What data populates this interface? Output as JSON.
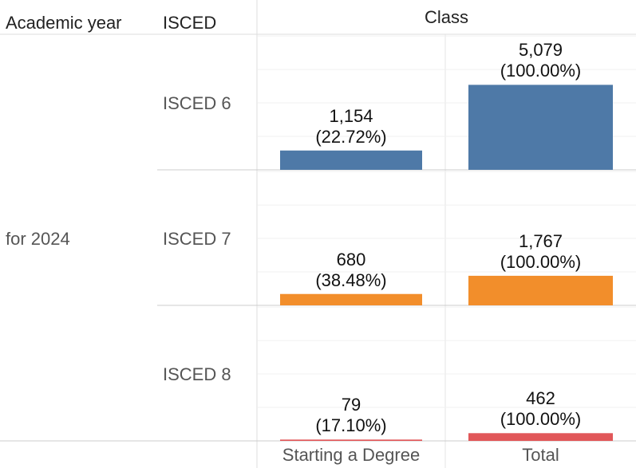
{
  "headers": {
    "year": "Academic year",
    "isced": "ISCED",
    "class": "Class"
  },
  "year_label": "for 2024",
  "chart_data": {
    "type": "bar",
    "title": "",
    "categories": [
      "Starting a Degree",
      "Total"
    ],
    "rows": [
      "ISCED 6",
      "ISCED 7",
      "ISCED 8"
    ],
    "series": [
      {
        "row": "ISCED 6",
        "color": "#4e79a7",
        "values": [
          1154,
          5079
        ],
        "labels": [
          "1,154",
          "5,079"
        ],
        "pct": [
          "(22.72%)",
          "(100.00%)"
        ]
      },
      {
        "row": "ISCED 7",
        "color": "#f28e2b",
        "values": [
          680,
          1767
        ],
        "labels": [
          "680",
          "1,767"
        ],
        "pct": [
          "(38.48%)",
          "(100.00%)"
        ]
      },
      {
        "row": "ISCED 8",
        "color": "#e15759",
        "values": [
          79,
          462
        ],
        "labels": [
          "79",
          "462"
        ],
        "pct": [
          "(17.10%)",
          "(100.00%)"
        ]
      }
    ],
    "ylim": [
      0,
      8100
    ],
    "grid": true,
    "grid_step": 2000
  }
}
